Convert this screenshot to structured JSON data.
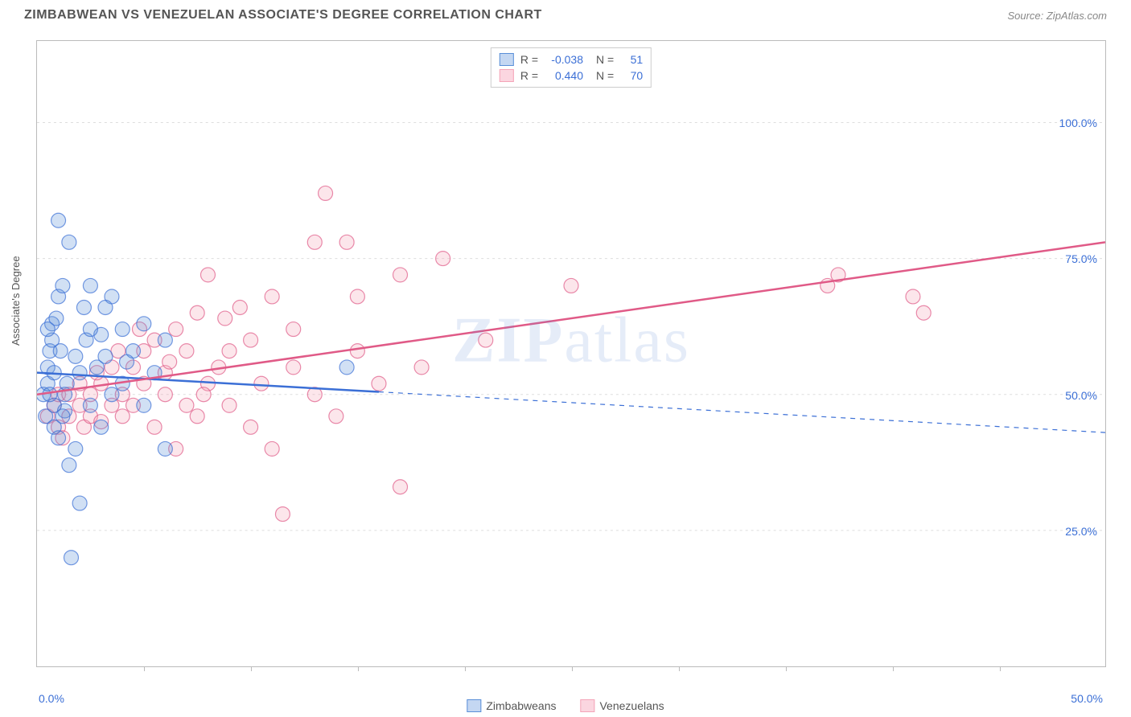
{
  "header": {
    "title": "ZIMBABWEAN VS VENEZUELAN ASSOCIATE'S DEGREE CORRELATION CHART",
    "source": "Source: ZipAtlas.com"
  },
  "y_axis": {
    "label": "Associate's Degree"
  },
  "watermark": "ZIPatlas",
  "chart": {
    "type": "scatter",
    "background_color": "#ffffff",
    "grid_color": "#dddddd",
    "xlim": [
      0,
      50
    ],
    "ylim": [
      0,
      115
    ],
    "x_ticks": [
      0,
      5,
      10,
      15,
      20,
      25,
      30,
      35,
      40,
      45,
      50
    ],
    "x_tick_labels": {
      "0": "0.0%",
      "50": "50.0%"
    },
    "y_ticks": [
      25,
      50,
      75,
      100
    ],
    "y_tick_labels": {
      "25": "25.0%",
      "50": "50.0%",
      "75": "75.0%",
      "100": "100.0%"
    },
    "marker_radius": 9,
    "marker_fill_opacity": 0.28,
    "marker_stroke_width": 1.2,
    "line_width_solid": 2.5,
    "line_width_dash": 1.2,
    "series": [
      {
        "name": "Zimbabweans",
        "legend_label": "Zimbabweans",
        "color": "#5a8fd8",
        "stroke": "#3b6fd6",
        "R": "-0.038",
        "N": "51",
        "trend": {
          "x0": 0,
          "y0": 54,
          "x1": 50,
          "y1": 43,
          "solid_until_x": 16
        },
        "points": [
          [
            0.3,
            50
          ],
          [
            0.4,
            46
          ],
          [
            0.5,
            52
          ],
          [
            0.5,
            55
          ],
          [
            0.6,
            58
          ],
          [
            0.7,
            60
          ],
          [
            0.7,
            63
          ],
          [
            0.8,
            48
          ],
          [
            0.8,
            44
          ],
          [
            1.0,
            82
          ],
          [
            1.0,
            68
          ],
          [
            1.2,
            70
          ],
          [
            1.3,
            50
          ],
          [
            1.3,
            47
          ],
          [
            1.5,
            78
          ],
          [
            1.5,
            37
          ],
          [
            1.6,
            20
          ],
          [
            1.8,
            40
          ],
          [
            1.8,
            57
          ],
          [
            2.0,
            30
          ],
          [
            2.0,
            54
          ],
          [
            2.2,
            66
          ],
          [
            2.3,
            60
          ],
          [
            2.5,
            70
          ],
          [
            2.5,
            48
          ],
          [
            2.8,
            55
          ],
          [
            3.0,
            61
          ],
          [
            3.0,
            44
          ],
          [
            3.2,
            57
          ],
          [
            3.5,
            50
          ],
          [
            3.5,
            68
          ],
          [
            4.0,
            62
          ],
          [
            4.0,
            52
          ],
          [
            4.5,
            58
          ],
          [
            5.0,
            63
          ],
          [
            5.0,
            48
          ],
          [
            5.5,
            54
          ],
          [
            6.0,
            40
          ],
          [
            6.0,
            60
          ],
          [
            1.0,
            42
          ],
          [
            1.2,
            46
          ],
          [
            1.4,
            52
          ],
          [
            0.6,
            50
          ],
          [
            0.8,
            54
          ],
          [
            2.5,
            62
          ],
          [
            3.2,
            66
          ],
          [
            4.2,
            56
          ],
          [
            1.1,
            58
          ],
          [
            0.9,
            64
          ],
          [
            14.5,
            55
          ],
          [
            0.5,
            62
          ]
        ]
      },
      {
        "name": "Venezuelans",
        "legend_label": "Venezuelans",
        "color": "#f4a4b8",
        "stroke": "#e05a87",
        "R": "0.440",
        "N": "70",
        "trend": {
          "x0": 0,
          "y0": 50,
          "x1": 50,
          "y1": 78,
          "solid_until_x": 50
        },
        "points": [
          [
            0.5,
            46
          ],
          [
            0.8,
            48
          ],
          [
            1.0,
            50
          ],
          [
            1.0,
            44
          ],
          [
            1.2,
            42
          ],
          [
            1.5,
            50
          ],
          [
            1.5,
            46
          ],
          [
            2.0,
            48
          ],
          [
            2.0,
            52
          ],
          [
            2.2,
            44
          ],
          [
            2.5,
            46
          ],
          [
            2.5,
            50
          ],
          [
            3.0,
            52
          ],
          [
            3.0,
            45
          ],
          [
            3.5,
            48
          ],
          [
            3.5,
            55
          ],
          [
            4.0,
            50
          ],
          [
            4.0,
            46
          ],
          [
            4.5,
            55
          ],
          [
            4.5,
            48
          ],
          [
            5.0,
            58
          ],
          [
            5.0,
            52
          ],
          [
            5.5,
            44
          ],
          [
            5.5,
            60
          ],
          [
            6.0,
            50
          ],
          [
            6.0,
            54
          ],
          [
            6.5,
            62
          ],
          [
            6.5,
            40
          ],
          [
            7.0,
            58
          ],
          [
            7.0,
            48
          ],
          [
            7.5,
            65
          ],
          [
            7.5,
            46
          ],
          [
            8.0,
            72
          ],
          [
            8.0,
            52
          ],
          [
            8.5,
            55
          ],
          [
            9.0,
            58
          ],
          [
            9.0,
            48
          ],
          [
            9.5,
            66
          ],
          [
            10.0,
            44
          ],
          [
            10.0,
            60
          ],
          [
            11.0,
            68
          ],
          [
            11.0,
            40
          ],
          [
            11.5,
            28
          ],
          [
            12.0,
            62
          ],
          [
            12.0,
            55
          ],
          [
            13.0,
            78
          ],
          [
            13.0,
            50
          ],
          [
            13.5,
            87
          ],
          [
            14.0,
            46
          ],
          [
            14.5,
            78
          ],
          [
            15.0,
            58
          ],
          [
            15.0,
            68
          ],
          [
            16.0,
            52
          ],
          [
            17.0,
            33
          ],
          [
            17.0,
            72
          ],
          [
            18.0,
            55
          ],
          [
            19.0,
            75
          ],
          [
            21.0,
            60
          ],
          [
            25.0,
            70
          ],
          [
            37.0,
            70
          ],
          [
            37.5,
            72
          ],
          [
            41.0,
            68
          ],
          [
            41.5,
            65
          ],
          [
            2.8,
            54
          ],
          [
            3.8,
            58
          ],
          [
            4.8,
            62
          ],
          [
            6.2,
            56
          ],
          [
            7.8,
            50
          ],
          [
            8.8,
            64
          ],
          [
            10.5,
            52
          ]
        ]
      }
    ]
  },
  "stats_box": {
    "rows": [
      {
        "swatch_fill": "#c4d7f2",
        "swatch_border": "#5a8fd8",
        "r_label": "R =",
        "r_val": "-0.038",
        "n_label": "N =",
        "n_val": "51"
      },
      {
        "swatch_fill": "#fbd6e0",
        "swatch_border": "#f4a4b8",
        "r_label": "R =",
        "r_val": "0.440",
        "n_label": "N =",
        "n_val": "70"
      }
    ]
  },
  "bottom_legend": [
    {
      "swatch_fill": "#c4d7f2",
      "swatch_border": "#5a8fd8",
      "label": "Zimbabweans"
    },
    {
      "swatch_fill": "#fbd6e0",
      "swatch_border": "#f4a4b8",
      "label": "Venezuelans"
    }
  ]
}
